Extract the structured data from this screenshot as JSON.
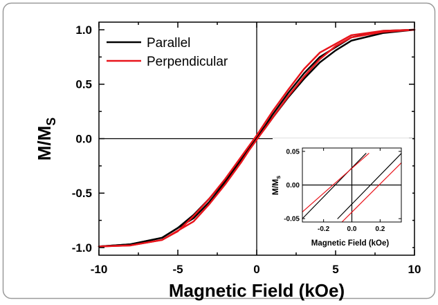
{
  "chart_data": [
    {
      "type": "line",
      "title": "",
      "xlabel": "Magnetic Field (kOe)",
      "ylabel_main": "M/M",
      "ylabel_sub": "S",
      "xlim": [
        -10,
        10
      ],
      "ylim": [
        -1.07,
        1.07
      ],
      "xticks": [
        -10,
        -5,
        0,
        5,
        10
      ],
      "xtick_labels": [
        "-10",
        "-5",
        "0",
        "5",
        "10"
      ],
      "yticks": [
        -1.0,
        -0.5,
        0.0,
        0.5,
        1.0
      ],
      "ytick_labels": [
        "-1.0",
        "-0.5",
        "0.0",
        "0.5",
        "1.0"
      ],
      "zero_lines": true,
      "grid": false,
      "legend_position": "top-left",
      "series": [
        {
          "name": "Parallel",
          "color": "#000000",
          "descending": {
            "x": [
              10,
              8,
              6,
              4,
              3,
              2,
              1,
              0.5,
              0,
              -0.5,
              -1,
              -2,
              -3,
              -4,
              -5,
              -6,
              -8,
              -10
            ],
            "y": [
              1.0,
              0.99,
              0.93,
              0.75,
              0.6,
              0.42,
              0.22,
              0.11,
              0.02,
              -0.08,
              -0.18,
              -0.38,
              -0.55,
              -0.7,
              -0.82,
              -0.91,
              -0.97,
              -0.99
            ]
          },
          "ascending": {
            "x": [
              -10,
              -8,
              -6,
              -4,
              -3,
              -2,
              -1,
              -0.5,
              0,
              0.5,
              1,
              2,
              3,
              4,
              5,
              6,
              8,
              10
            ],
            "y": [
              -0.99,
              -0.97,
              -0.91,
              -0.73,
              -0.58,
              -0.4,
              -0.2,
              -0.09,
              0.0,
              0.09,
              0.19,
              0.38,
              0.55,
              0.7,
              0.81,
              0.9,
              0.97,
              1.0
            ]
          }
        },
        {
          "name": "Perpendicular",
          "color": "#e8141b",
          "descending": {
            "x": [
              10,
              8,
              6,
              4,
              3,
              2,
              1,
              0.5,
              0,
              -0.5,
              -1,
              -2,
              -3,
              -4,
              -5,
              -6,
              -8,
              -10
            ],
            "y": [
              1.0,
              0.99,
              0.95,
              0.79,
              0.64,
              0.45,
              0.25,
              0.14,
              0.03,
              -0.07,
              -0.17,
              -0.37,
              -0.55,
              -0.71,
              -0.85,
              -0.93,
              -0.98,
              -0.99
            ]
          },
          "ascending": {
            "x": [
              -10,
              -8,
              -6,
              -4,
              -3,
              -2,
              -1,
              -0.5,
              0,
              0.5,
              1,
              2,
              3,
              4,
              5,
              6,
              8,
              10
            ],
            "y": [
              -0.99,
              -0.98,
              -0.93,
              -0.76,
              -0.6,
              -0.42,
              -0.22,
              -0.11,
              -0.01,
              0.09,
              0.19,
              0.39,
              0.57,
              0.73,
              0.85,
              0.93,
              0.98,
              1.0
            ]
          }
        }
      ]
    },
    {
      "type": "line",
      "title": "",
      "xlabel": "Magnetic Field (kOe)",
      "ylabel_main": "M/M",
      "ylabel_sub": "s",
      "xlim": [
        -0.35,
        0.35
      ],
      "ylim": [
        -0.055,
        0.055
      ],
      "xticks": [
        -0.2,
        0.0,
        0.2
      ],
      "xtick_labels": [
        "-0.2",
        "0.0",
        "0.2"
      ],
      "yticks": [
        -0.05,
        0.0,
        0.05
      ],
      "ytick_labels": [
        "-0.05",
        "0.00",
        "0.05"
      ],
      "zero_lines": true,
      "grid": false,
      "series": [
        {
          "name": "Parallel",
          "color": "#000000",
          "descending": {
            "x": [
              -0.35,
              0.1
            ],
            "y": [
              -0.05,
              0.047
            ]
          },
          "ascending": {
            "x": [
              -0.1,
              0.35
            ],
            "y": [
              -0.05,
              0.047
            ]
          }
        },
        {
          "name": "Perpendicular",
          "color": "#e8141b",
          "descending": {
            "x": [
              -0.35,
              0.12
            ],
            "y": [
              -0.04,
              0.047
            ]
          },
          "ascending": {
            "x": [
              -0.07,
              0.35
            ],
            "y": [
              -0.055,
              0.033
            ]
          }
        }
      ]
    }
  ]
}
